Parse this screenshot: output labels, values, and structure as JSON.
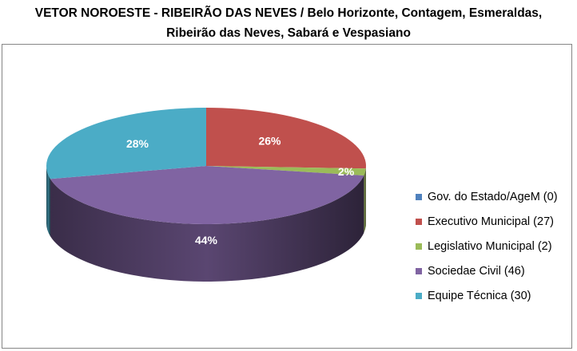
{
  "chart_data": {
    "type": "pie",
    "title_lines": [
      "VETOR NOROESTE - RIBEIRÃO DAS NEVES / Belo Horizonte, Contagem, Esmeraldas,",
      "Ribeirão das Neves, Sabará e Vespasiano"
    ],
    "slices": [
      {
        "legend": "Gov. do Estado/AgeM (0)",
        "value": 0,
        "label": "",
        "color": "#4f81bd"
      },
      {
        "legend": "Executivo Municipal (27)",
        "value": 27,
        "label": "26%",
        "color": "#c0504d"
      },
      {
        "legend": "Legislativo Municipal (2)",
        "value": 2,
        "label": "2%",
        "color": "#9bbb59"
      },
      {
        "legend": "Sociedae Civil (46)",
        "value": 46,
        "label": "44%",
        "color": "#8064a2"
      },
      {
        "legend": "Equipe Técnica (30)",
        "value": 30,
        "label": "28%",
        "color": "#4bacc6"
      }
    ],
    "start_angle_deg": 0,
    "style": "3d-pie",
    "legend_position": "right"
  }
}
